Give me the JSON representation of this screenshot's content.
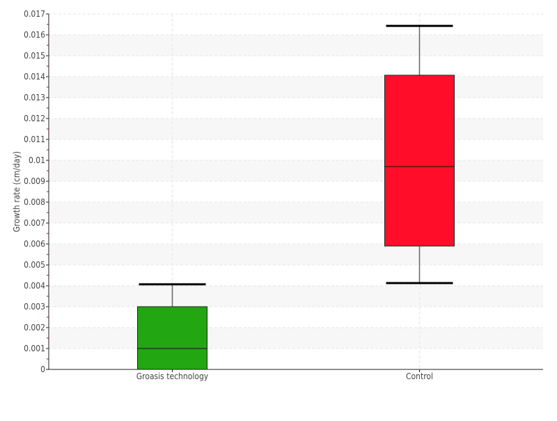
{
  "chart_data": {
    "type": "box",
    "title": "",
    "xlabel": "",
    "ylabel": "Growth rate (cm/day)",
    "ylim": [
      0,
      0.017
    ],
    "yticks": [
      "0",
      "0.001",
      "0.002",
      "0.003",
      "0.004",
      "0.005",
      "0.006",
      "0.007",
      "0.008",
      "0.009",
      "0.01",
      "0.011",
      "0.012",
      "0.013",
      "0.014",
      "0.015",
      "0.016",
      "0.017"
    ],
    "grid": true,
    "categories": [
      "Groasis technology",
      "Control"
    ],
    "boxes": [
      {
        "category": "Groasis technology",
        "min": 0,
        "q1": 0,
        "median": 0.001,
        "q3": 0.003,
        "max": 0.00407,
        "color": "#22a611"
      },
      {
        "category": "Control",
        "min": 0.00413,
        "q1": 0.0059,
        "median": 0.0097,
        "q3": 0.01407,
        "max": 0.01643,
        "color": "#ff0d29"
      }
    ]
  }
}
